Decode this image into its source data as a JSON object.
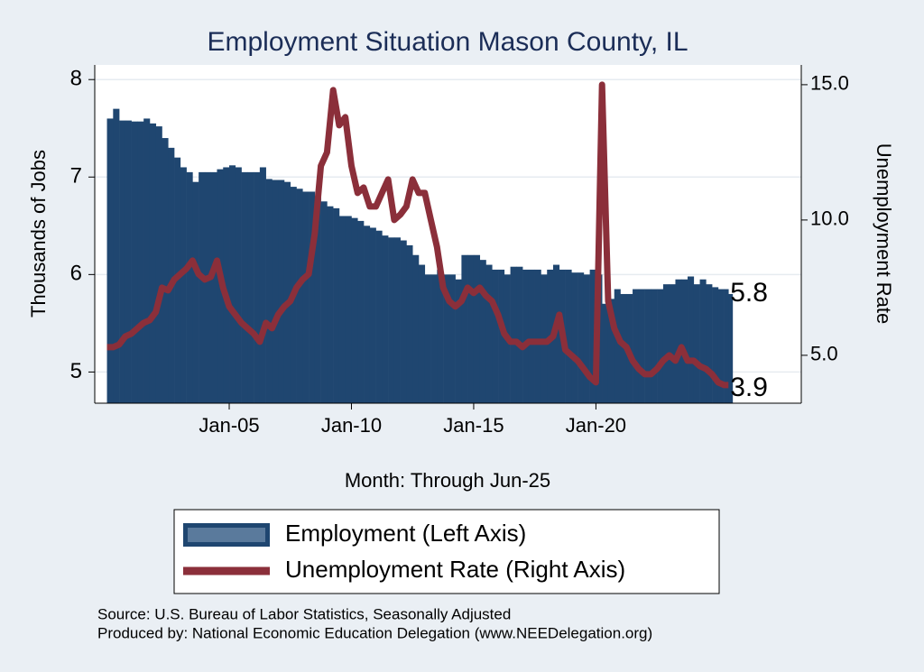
{
  "chart_data": {
    "type": "bar-line",
    "title": "Employment Situation Mason  County, IL",
    "x_label": "Month: Through Jun-25",
    "y_label": "Thousands of Jobs",
    "y2_label": "Unemployment Rate",
    "notes": [
      "Source: U.S. Bureau of Labor Statistics, Seasonally Adjusted",
      "Produced by: National Economic Education Delegation (www.NEEDelegation.org)"
    ],
    "x": [
      2000,
      2000.25,
      2000.5,
      2000.75,
      2001,
      2001.25,
      2001.5,
      2001.75,
      2002,
      2002.25,
      2002.5,
      2002.75,
      2003,
      2003.25,
      2003.5,
      2003.75,
      2004,
      2004.25,
      2004.5,
      2004.75,
      2005,
      2005.25,
      2005.5,
      2005.75,
      2006,
      2006.25,
      2006.5,
      2006.75,
      2007,
      2007.25,
      2007.5,
      2007.75,
      2008,
      2008.25,
      2008.5,
      2008.75,
      2009,
      2009.25,
      2009.5,
      2009.75,
      2010,
      2010.25,
      2010.5,
      2010.75,
      2011,
      2011.25,
      2011.5,
      2011.75,
      2012,
      2012.25,
      2012.5,
      2012.75,
      2013,
      2013.25,
      2013.5,
      2013.75,
      2014,
      2014.25,
      2014.5,
      2014.75,
      2015,
      2015.25,
      2015.5,
      2015.75,
      2016,
      2016.25,
      2016.5,
      2016.75,
      2017,
      2017.25,
      2017.5,
      2017.75,
      2018,
      2018.25,
      2018.5,
      2018.75,
      2019,
      2019.25,
      2019.5,
      2019.75,
      2020,
      2020.25,
      2020.5,
      2020.75,
      2021,
      2021.25,
      2021.5,
      2021.75,
      2022,
      2022.25,
      2022.5,
      2022.75,
      2023,
      2023.25,
      2023.5,
      2023.75,
      2024,
      2024.25,
      2024.5,
      2024.75,
      2025,
      2025.25,
      2025.42
    ],
    "series": [
      {
        "name": "Employment (Left Axis)",
        "color": "#1f4670",
        "axis": "y",
        "values": [
          7.6,
          7.7,
          7.58,
          7.58,
          7.57,
          7.57,
          7.6,
          7.55,
          7.52,
          7.4,
          7.3,
          7.2,
          7.1,
          7.05,
          6.95,
          7.05,
          7.05,
          7.05,
          7.08,
          7.1,
          7.12,
          7.1,
          7.05,
          7.05,
          7.05,
          7.1,
          6.98,
          6.97,
          6.97,
          6.95,
          6.9,
          6.88,
          6.85,
          6.85,
          6.8,
          6.75,
          6.7,
          6.68,
          6.6,
          6.6,
          6.58,
          6.55,
          6.5,
          6.48,
          6.45,
          6.4,
          6.38,
          6.38,
          6.35,
          6.3,
          6.2,
          6.1,
          6.0,
          6.0,
          6.05,
          6.0,
          6.0,
          5.95,
          6.2,
          6.2,
          6.2,
          6.15,
          6.1,
          6.05,
          6.05,
          6.0,
          6.08,
          6.08,
          6.05,
          6.05,
          6.05,
          6.0,
          6.05,
          6.1,
          6.05,
          6.05,
          6.02,
          6.02,
          6.0,
          6.05,
          6.0,
          5.7,
          5.75,
          5.85,
          5.8,
          5.8,
          5.85,
          5.85,
          5.85,
          5.85,
          5.85,
          5.9,
          5.9,
          5.95,
          5.95,
          5.98,
          5.9,
          5.95,
          5.9,
          5.87,
          5.85,
          5.85,
          5.8
        ]
      },
      {
        "name": "Unemployment Rate (Right Axis)",
        "color": "#8b2f3a",
        "axis": "y2",
        "values": [
          5.3,
          5.3,
          5.4,
          5.7,
          5.8,
          6.0,
          6.2,
          6.3,
          6.6,
          7.5,
          7.4,
          7.8,
          8.0,
          8.2,
          8.5,
          8.0,
          7.8,
          7.9,
          8.5,
          7.5,
          6.8,
          6.5,
          6.2,
          6.0,
          5.8,
          5.5,
          6.2,
          6.0,
          6.5,
          6.8,
          7.0,
          7.5,
          7.8,
          8.0,
          9.5,
          12.0,
          12.5,
          14.8,
          13.5,
          13.8,
          12.0,
          11.0,
          11.2,
          10.5,
          10.5,
          11.0,
          11.5,
          10.0,
          10.2,
          10.5,
          11.5,
          11.0,
          11.0,
          10.0,
          9.0,
          7.5,
          7.0,
          6.8,
          7.0,
          7.5,
          7.3,
          7.5,
          7.2,
          7.0,
          6.5,
          5.8,
          5.5,
          5.5,
          5.3,
          5.5,
          5.5,
          5.5,
          5.5,
          5.7,
          6.5,
          5.2,
          5.0,
          4.8,
          4.5,
          4.2,
          4.0,
          15.0,
          7.0,
          6.0,
          5.5,
          5.3,
          4.8,
          4.5,
          4.3,
          4.3,
          4.5,
          4.8,
          5.0,
          4.8,
          5.3,
          4.8,
          4.8,
          4.6,
          4.5,
          4.3,
          4.0,
          3.9,
          3.9
        ]
      }
    ],
    "xlim": [
      1999.5,
      2028.4
    ],
    "xticks": [
      {
        "value": 2005,
        "label": "Jan-05"
      },
      {
        "value": 2010,
        "label": "Jan-10"
      },
      {
        "value": 2015,
        "label": "Jan-15"
      },
      {
        "value": 2020,
        "label": "Jan-20"
      }
    ],
    "ylim": [
      4.68,
      8.15
    ],
    "yticks": [
      5,
      6,
      7,
      8
    ],
    "y2lim": [
      3.23,
      15.73
    ],
    "y2ticks": [
      {
        "value": 5,
        "label": "5.0"
      },
      {
        "value": 10,
        "label": "10.0"
      },
      {
        "value": 15,
        "label": "15.0"
      }
    ],
    "grid": true
  }
}
